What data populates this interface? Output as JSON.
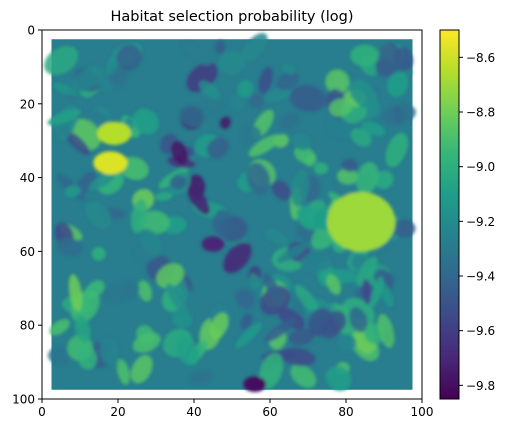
{
  "chart_data": {
    "type": "heatmap",
    "title": "Habitat selection probability (log)",
    "xlabel": "",
    "ylabel": "",
    "xlim": [
      0,
      100
    ],
    "ylim": [
      100,
      0
    ],
    "x_ticks": [
      0,
      20,
      40,
      60,
      80,
      100
    ],
    "y_ticks": [
      0,
      20,
      40,
      60,
      80,
      100
    ],
    "data_extent": {
      "x": [
        2.5,
        97.5
      ],
      "y": [
        2.5,
        97.5
      ]
    },
    "grid": false,
    "colormap": "viridis",
    "colorbar": {
      "min": -9.85,
      "max": -8.5,
      "ticks": [
        -8.6,
        -8.8,
        -9.0,
        -9.2,
        -9.4,
        -9.6,
        -9.8
      ],
      "tick_labels": [
        "−8.6",
        "−8.8",
        "−9.0",
        "−9.2",
        "−9.4",
        "−9.6",
        "−9.8"
      ],
      "colors": [
        "#440154",
        "#482878",
        "#3e4989",
        "#31688e",
        "#26828e",
        "#1f9e89",
        "#35b779",
        "#6ece58",
        "#b5de2b",
        "#fde725"
      ]
    },
    "notable_regions": [
      {
        "x": 18,
        "y": 36,
        "value": -8.57
      },
      {
        "x": 19,
        "y": 28,
        "value": -8.65
      },
      {
        "x": 84,
        "y": 52,
        "value": -8.7
      },
      {
        "x": 56,
        "y": 96,
        "value": -9.8
      },
      {
        "x": 45,
        "y": 58,
        "value": -9.7
      }
    ]
  }
}
